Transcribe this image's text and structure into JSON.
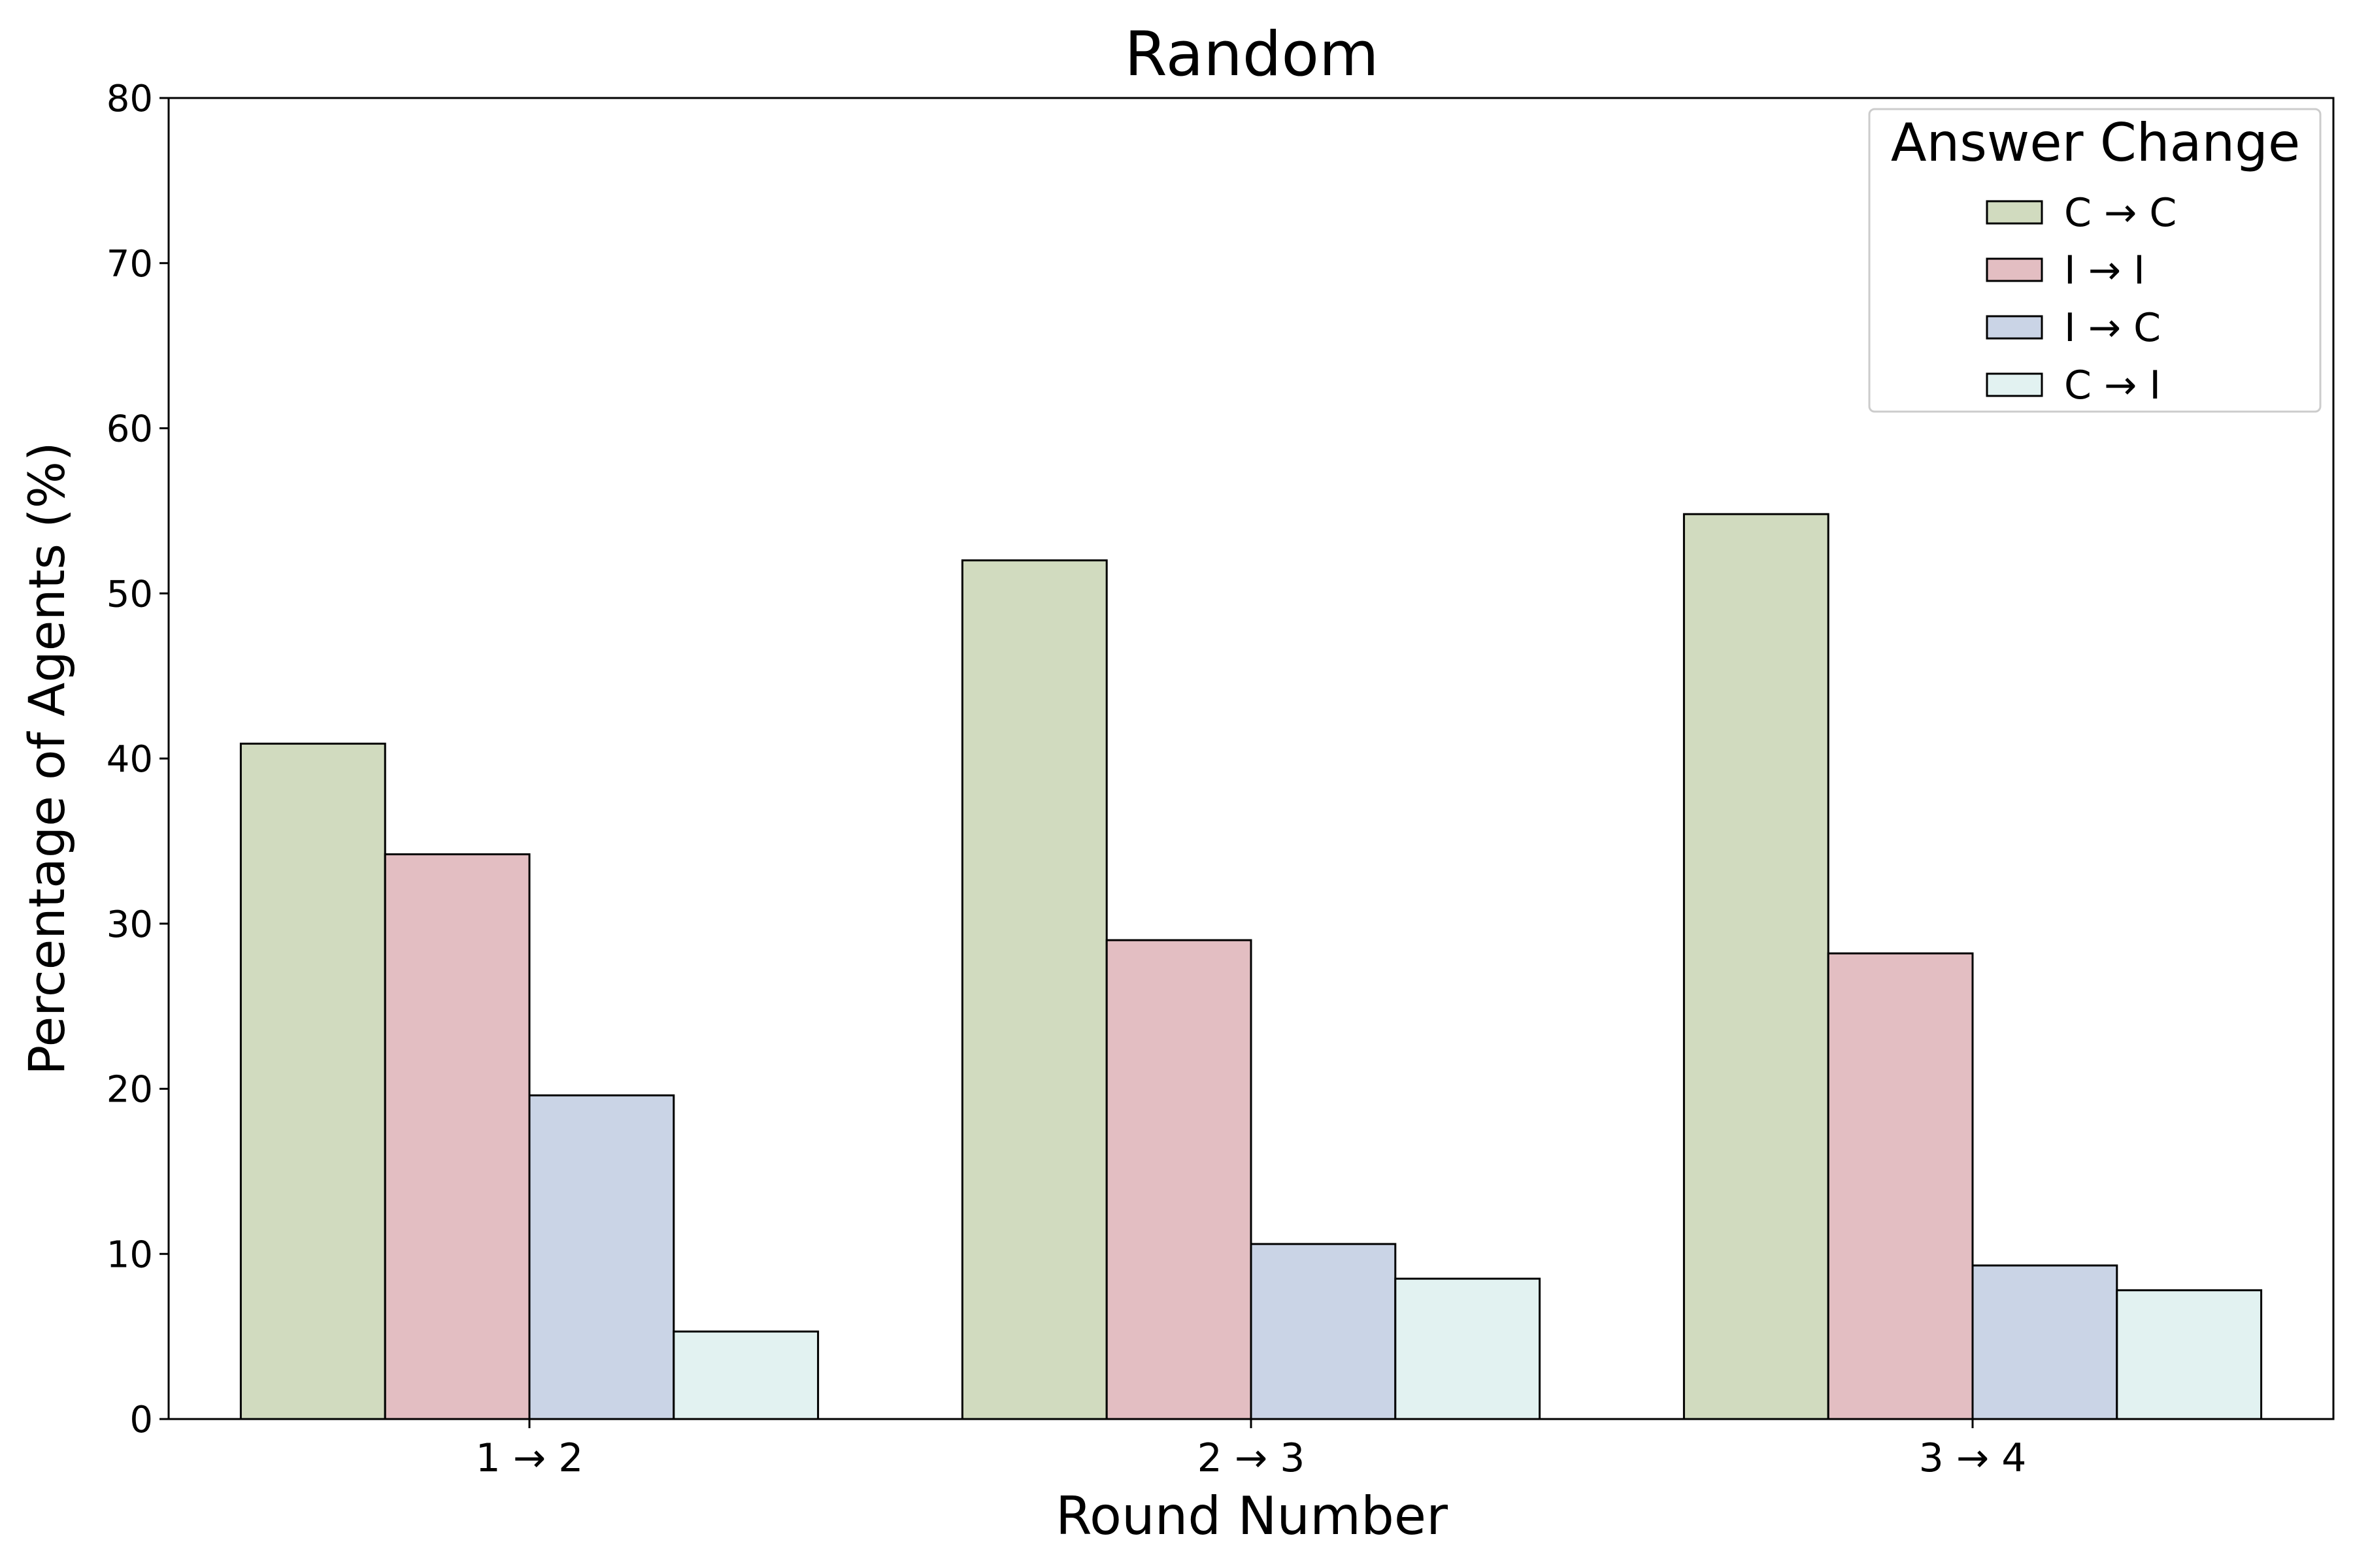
{
  "chart_data": {
    "type": "bar",
    "title": "Random",
    "xlabel": "Round Number",
    "ylabel": "Percentage of Agents (%)",
    "categories": [
      "1 → 2",
      "2 → 3",
      "3 → 4"
    ],
    "ylim": [
      0,
      80
    ],
    "yticks": [
      "0",
      "10",
      "20",
      "30",
      "40",
      "50",
      "60",
      "70",
      "80"
    ],
    "grid": false,
    "legend": {
      "title": "Answer Change",
      "placement": "top-right"
    },
    "series": [
      {
        "name": "C → C",
        "color": "#d1dbbf",
        "values": [
          40.9,
          52.0,
          54.8
        ]
      },
      {
        "name": "I → I",
        "color": "#e3bec2",
        "values": [
          34.2,
          29.0,
          28.2
        ]
      },
      {
        "name": "I → C",
        "color": "#cad4e6",
        "values": [
          19.6,
          10.6,
          9.3
        ]
      },
      {
        "name": "C → I",
        "color": "#e2f2f1",
        "values": [
          5.3,
          8.5,
          7.8
        ]
      }
    ]
  }
}
